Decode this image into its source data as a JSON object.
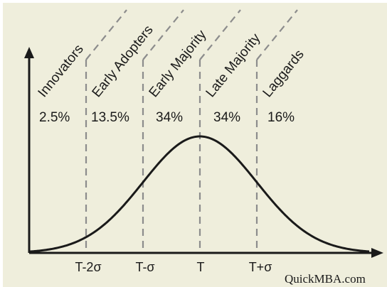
{
  "diagram": {
    "colors": {
      "background": "#efeedc",
      "frame": "#ffffff",
      "ink": "#1a1a1a",
      "dashes": "#8c8c8c"
    },
    "segments": [
      {
        "label": "Innovators",
        "percent": "2.5%"
      },
      {
        "label": "Early Adopters",
        "percent": "13.5%"
      },
      {
        "label": "Early Majority",
        "percent": "34%"
      },
      {
        "label": "Late Majority",
        "percent": "34%"
      },
      {
        "label": "Laggards",
        "percent": "16%"
      }
    ],
    "x_ticks": [
      "T-2σ",
      "T-σ",
      "T",
      "T+σ"
    ],
    "watermark": "QuickMBA.com"
  }
}
